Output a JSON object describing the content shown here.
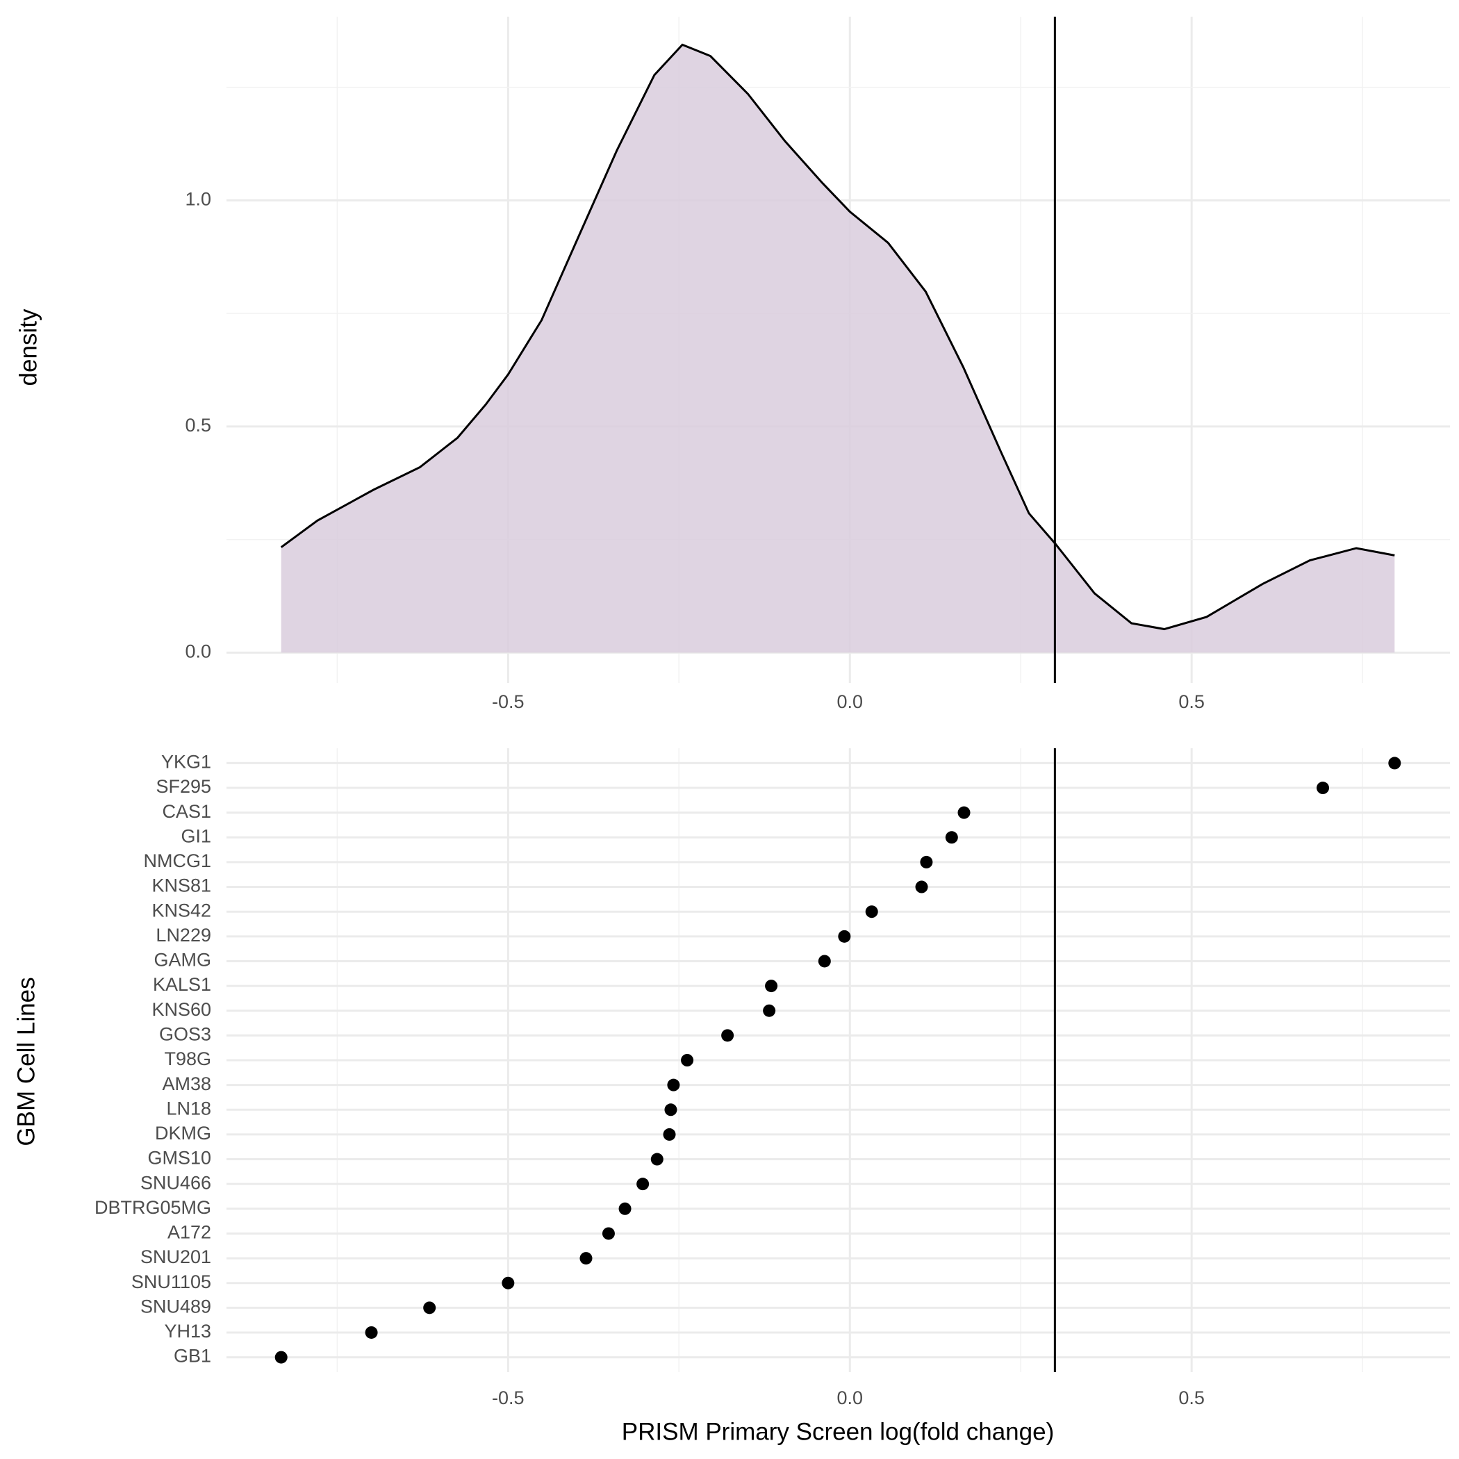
{
  "chart_data": [
    {
      "type": "area",
      "ylabel": "density",
      "x": [
        -0.832,
        -0.779,
        -0.697,
        -0.629,
        -0.574,
        -0.533,
        -0.5,
        -0.451,
        -0.396,
        -0.341,
        -0.286,
        -0.245,
        -0.204,
        -0.149,
        -0.095,
        -0.04,
        0,
        0.056,
        0.111,
        0.166,
        0.221,
        0.262,
        0.301,
        0.358,
        0.412,
        0.46,
        0.522,
        0.604,
        0.673,
        0.741,
        0.797
      ],
      "values": [
        0.233,
        0.292,
        0.36,
        0.41,
        0.475,
        0.548,
        0.615,
        0.735,
        0.923,
        1.11,
        1.277,
        1.344,
        1.319,
        1.235,
        1.131,
        1.038,
        0.975,
        0.906,
        0.798,
        0.631,
        0.444,
        0.308,
        0.24,
        0.131,
        0.065,
        0.052,
        0.079,
        0.152,
        0.204,
        0.231,
        0.215
      ],
      "color": "#d9ccdd",
      "line_color": "#000000",
      "xlim": [
        -0.912,
        0.878
      ],
      "ylim": [
        -0.067,
        1.406
      ],
      "xticks": [
        -0.5,
        {
          "value": 0,
          "label": "0.0"
        },
        0.5
      ],
      "yticks": [
        {
          "value": 0,
          "label": "0.0"
        },
        0.5,
        {
          "value": 1,
          "label": "1.0"
        }
      ],
      "vline": 0.3,
      "grid": true
    },
    {
      "type": "dot",
      "xlabel": "PRISM Primary Screen log(fold change)",
      "ylabel": "GBM Cell Lines",
      "categories": [
        "YKG1",
        "SF295",
        "CAS1",
        "GI1",
        "NMCG1",
        "KNS81",
        "KNS42",
        "LN229",
        "GAMG",
        "KALS1",
        "KNS60",
        "GOS3",
        "T98G",
        "AM38",
        "LN18",
        "DKMG",
        "GMS10",
        "SNU466",
        "DBTRG05MG",
        "A172",
        "SNU201",
        "SNU1105",
        "SNU489",
        "YH13",
        "GB1"
      ],
      "values": [
        0.797,
        0.692,
        0.167,
        0.149,
        0.112,
        0.105,
        0.032,
        -0.008,
        -0.037,
        -0.115,
        -0.118,
        -0.179,
        -0.238,
        -0.258,
        -0.262,
        -0.264,
        -0.282,
        -0.303,
        -0.329,
        -0.353,
        -0.386,
        -0.5,
        -0.615,
        -0.7,
        -0.832
      ],
      "color": "#000000",
      "xlim": [
        -0.912,
        0.878
      ],
      "xticks": [
        -0.5,
        {
          "value": 0,
          "label": "0.0"
        },
        0.5
      ],
      "vline": 0.3,
      "grid": true
    }
  ]
}
